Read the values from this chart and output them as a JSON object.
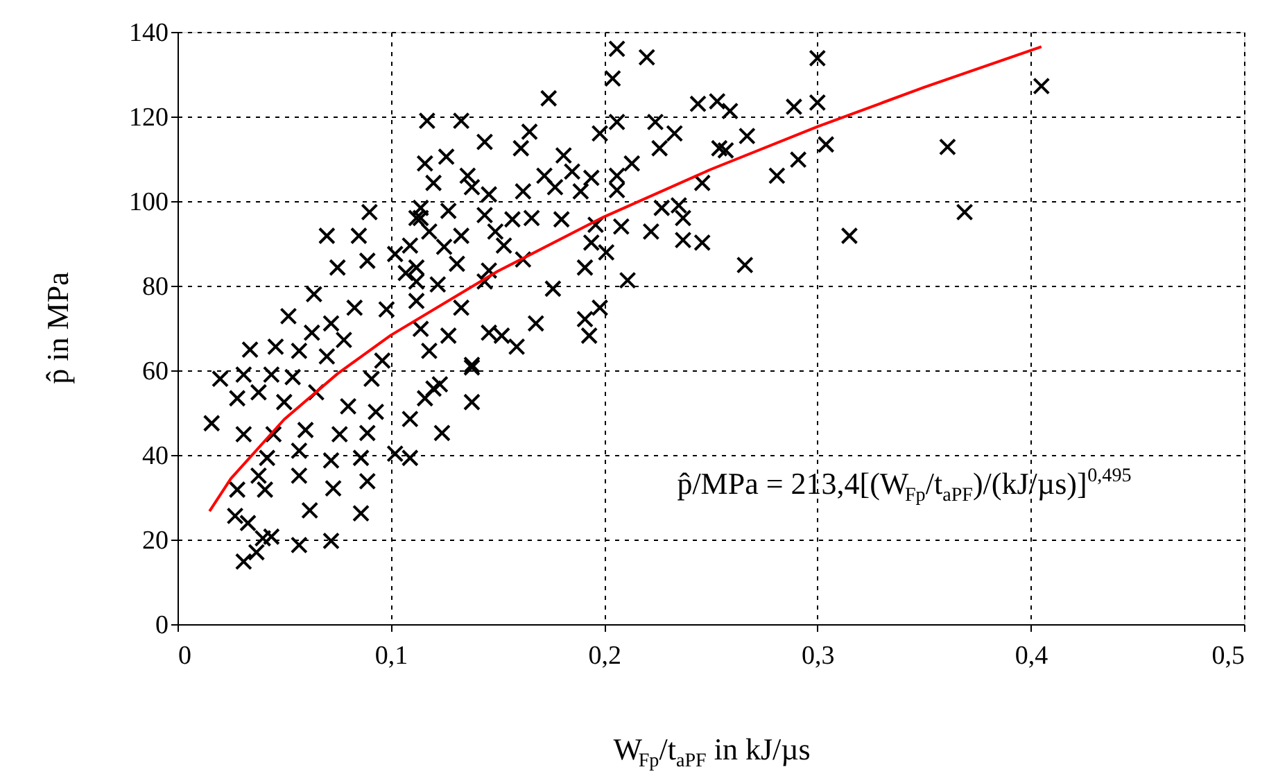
{
  "chart_data": {
    "type": "scatter",
    "xlabel": "W$_{Fp}$/t$_{aPF}$ in kJ/µs",
    "ylabel": "p̂ in MPa",
    "xlim": [
      0,
      0.5
    ],
    "ylim": [
      0,
      140
    ],
    "xticks": [
      0,
      {
        "value": 0.1,
        "label": "0,1"
      },
      {
        "value": 0.2,
        "label": "0,2"
      },
      {
        "value": 0.3,
        "label": "0,3"
      },
      {
        "value": 0.4,
        "label": "0,4"
      },
      {
        "value": 0.5,
        "label": "0,5"
      }
    ],
    "yticks": [
      0,
      20,
      40,
      60,
      80,
      100,
      120,
      140
    ],
    "grid": true,
    "annotations": [
      "p̂/MPa = 213,4[(W$_{Fp}$/t$_{aPF}$)/(kJ/µs)]$^{0,495}$"
    ],
    "series": [
      {
        "color": "#000000",
        "marker": "cross",
        "x": [
          0.3,
          0.3,
          0.289,
          0.304,
          0.291,
          0.281,
          0.361,
          0.369,
          0.315,
          0.266,
          0.405,
          0.259,
          0.267,
          0.257,
          0.206,
          0.22,
          0.204,
          0.174,
          0.117,
          0.133,
          0.206,
          0.198,
          0.224,
          0.233,
          0.244,
          0.253,
          0.144,
          0.165,
          0.161,
          0.226,
          0.254,
          0.116,
          0.126,
          0.181,
          0.213,
          0.12,
          0.136,
          0.172,
          0.185,
          0.194,
          0.206,
          0.246,
          0.138,
          0.146,
          0.162,
          0.177,
          0.189,
          0.206,
          0.112,
          0.127,
          0.144,
          0.157,
          0.166,
          0.18,
          0.196,
          0.208,
          0.222,
          0.227,
          0.235,
          0.237,
          0.237,
          0.246,
          0.118,
          0.133,
          0.149,
          0.153,
          0.194,
          0.201,
          0.109,
          0.125,
          0.162,
          0.191,
          0.211,
          0.112,
          0.131,
          0.146,
          0.144,
          0.133,
          0.176,
          0.198,
          0.191,
          0.193,
          0.168,
          0.146,
          0.152,
          0.159,
          0.138,
          0.127,
          0.118,
          0.123,
          0.114,
          0.112,
          0.107,
          0.122,
          0.114,
          0.138,
          0.12,
          0.116,
          0.138,
          0.124,
          0.07,
          0.085,
          0.09,
          0.114,
          0.089,
          0.102,
          0.112,
          0.064,
          0.075,
          0.098,
          0.052,
          0.072,
          0.083,
          0.063,
          0.078,
          0.046,
          0.034,
          0.057,
          0.07,
          0.096,
          0.02,
          0.031,
          0.044,
          0.054,
          0.091,
          0.028,
          0.038,
          0.05,
          0.065,
          0.08,
          0.093,
          0.016,
          0.031,
          0.045,
          0.06,
          0.076,
          0.089,
          0.109,
          0.109,
          0.102,
          0.042,
          0.057,
          0.072,
          0.086,
          0.038,
          0.057,
          0.073,
          0.089,
          0.028,
          0.041,
          0.062,
          0.086,
          0.027,
          0.033,
          0.04,
          0.044,
          0.057,
          0.072,
          0.031,
          0.037
        ],
        "values": [
          133.8,
          123.3,
          122.3,
          113.4,
          109.8,
          106,
          112.8,
          97.4,
          91.8,
          84.9,
          127.2,
          121.3,
          115.4,
          112,
          136,
          134,
          129,
          124.3,
          119,
          119,
          118.7,
          116,
          118.7,
          116,
          123,
          123.6,
          114,
          116.4,
          112.5,
          112.5,
          112.5,
          108.9,
          110.5,
          110.8,
          108.9,
          104.3,
          106,
          106,
          107,
          105.5,
          106,
          104.3,
          103.3,
          101.6,
          102.3,
          103.3,
          102.3,
          102.6,
          96,
          97.7,
          96.7,
          95.7,
          96,
          95.7,
          94.4,
          94,
          92.8,
          98.4,
          99,
          96,
          90.8,
          90.2,
          92.8,
          91.8,
          92.8,
          89.5,
          90.2,
          87.9,
          89.5,
          89.2,
          86.2,
          84.3,
          81.3,
          84.3,
          85.2,
          83.6,
          81,
          74.8,
          79.3,
          74.8,
          72.1,
          68.2,
          71.1,
          68.9,
          68.2,
          65.6,
          61.3,
          68.2,
          64.6,
          56.7,
          69.8,
          76.4,
          83,
          80.3,
          98.4,
          60.7,
          55.7,
          53.4,
          52.5,
          45.2,
          91.8,
          91.8,
          97.4,
          96,
          85.9,
          87.5,
          81,
          78,
          84.3,
          74.4,
          72.8,
          71.1,
          74.8,
          68.9,
          67.2,
          65.6,
          64.9,
          64.6,
          63.3,
          62.3,
          58,
          59,
          59,
          58.4,
          58,
          53.4,
          54.8,
          52.5,
          54.8,
          51.5,
          50.2,
          47.5,
          44.9,
          44.9,
          45.9,
          44.9,
          45.2,
          48.5,
          39.3,
          40.3,
          39.3,
          41,
          38.7,
          39.3,
          35.1,
          35.1,
          32.1,
          33.8,
          31.8,
          31.8,
          26.9,
          26.2,
          25.6,
          23.9,
          20.3,
          20.7,
          18.7,
          19.7,
          14.8,
          17
        ]
      },
      {
        "type": "line",
        "color": "#ff0000",
        "x": [
          0.015,
          0.025,
          0.05,
          0.075,
          0.1,
          0.15,
          0.2,
          0.25,
          0.3,
          0.35,
          0.405
        ],
        "values": [
          26.7,
          34.4,
          48.4,
          59.2,
          68.3,
          83.4,
          96.3,
          107.5,
          117.6,
          126.9,
          136.5
        ]
      }
    ]
  }
}
